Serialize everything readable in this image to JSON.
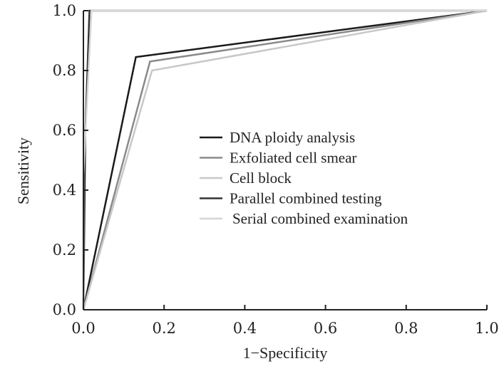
{
  "chart_data": {
    "type": "line",
    "title": "",
    "xlabel": "1−Specificity",
    "ylabel": "Sensitivity",
    "xlim": [
      0,
      1
    ],
    "ylim": [
      0,
      1
    ],
    "grid": false,
    "legend_position": "center-right",
    "x_ticks": [
      0,
      0.2,
      0.4,
      0.6,
      0.8,
      1.0
    ],
    "x_tick_labels": [
      "0.0",
      "0.2",
      "0.4",
      "0.6",
      "0.8",
      "1.0"
    ],
    "y_ticks": [
      0,
      0.2,
      0.4,
      0.6,
      0.8,
      1.0
    ],
    "y_tick_labels": [
      "0.0",
      "0.2",
      "0.4",
      "0.6",
      "0.8",
      "1.0"
    ],
    "series": [
      {
        "name": "DNA ploidy analysis",
        "color": "#1a1a1a",
        "x": [
          0,
          0.13,
          1.0
        ],
        "y": [
          0,
          0.845,
          1.0
        ]
      },
      {
        "name": "Exfoliated cell smear",
        "color": "#8a8a8a",
        "x": [
          0,
          0.165,
          1.0
        ],
        "y": [
          0,
          0.83,
          1.0
        ]
      },
      {
        "name": "Cell block",
        "color": "#c8c8c8",
        "x": [
          0,
          0.17,
          1.0
        ],
        "y": [
          0,
          0.8,
          1.0
        ]
      },
      {
        "name": "Parallel combined  testing",
        "color": "#333333",
        "x": [
          0,
          0.005,
          0.015,
          1.0
        ],
        "y": [
          0,
          0.6,
          1.0,
          1.0
        ]
      },
      {
        "name": "Serial combined examination",
        "color": "#d6d6d6",
        "x": [
          0,
          0.0,
          0.02,
          1.0
        ],
        "y": [
          0,
          0.45,
          1.0,
          1.0
        ]
      }
    ]
  }
}
